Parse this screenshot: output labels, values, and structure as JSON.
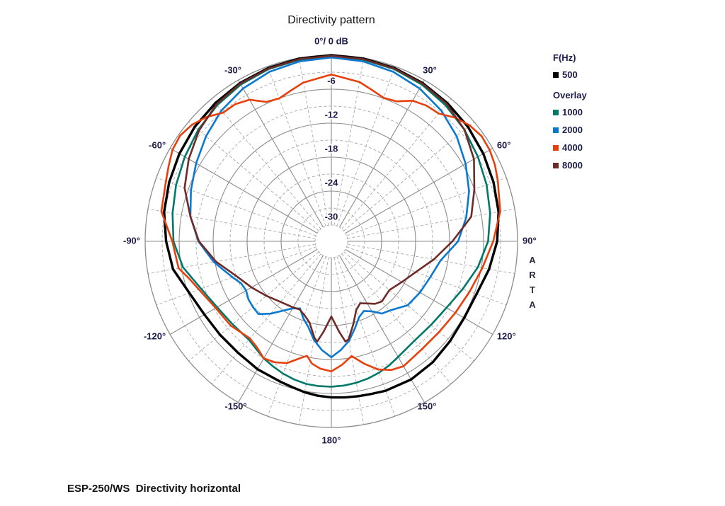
{
  "title": "Directivity pattern",
  "footer": "ESP-250/WS  Directivity horizontal",
  "arta_watermark": "ARTA",
  "legend": {
    "freq_header": "F(Hz)",
    "primary": {
      "label": "500",
      "color": "#000000"
    },
    "overlay_header": "Overlay",
    "overlays": [
      {
        "label": "1000",
        "color": "#00796b"
      },
      {
        "label": "2000",
        "color": "#0b79d0"
      },
      {
        "label": "4000",
        "color": "#e8400d"
      },
      {
        "label": "8000",
        "color": "#6e2b28"
      }
    ]
  },
  "style": {
    "grid_solid_color": "#8c8c8c",
    "grid_dashed_color": "#a8a8a8",
    "tick_label_color": "#1c1c4a",
    "background": "#ffffff"
  },
  "chart_data": {
    "type": "line",
    "subtype": "polar-directivity",
    "title": "Directivity pattern",
    "angle_unit": "deg",
    "radial_unit": "dB",
    "radial_range": [
      0,
      -30
    ],
    "rings_solid_db": [
      0,
      -6,
      -12,
      -18,
      -24
    ],
    "rings_dashed_db": [
      -3,
      -9,
      -15,
      -21,
      -27
    ],
    "inner_hole_db": -30,
    "spoke_step_solid_deg": 30,
    "spoke_step_dashed_deg": 10,
    "db_ticks": [
      {
        "db": -6,
        "label": "-6"
      },
      {
        "db": -12,
        "label": "-12"
      },
      {
        "db": -18,
        "label": "-18"
      },
      {
        "db": -24,
        "label": "-24"
      },
      {
        "db": -30,
        "label": "-30"
      }
    ],
    "angle_ticks": [
      {
        "deg": 0,
        "label": "0°/ 0 dB"
      },
      {
        "deg": 30,
        "label": "30°"
      },
      {
        "deg": 60,
        "label": "60°"
      },
      {
        "deg": 90,
        "label": "90°"
      },
      {
        "deg": 120,
        "label": "120°"
      },
      {
        "deg": 150,
        "label": "150°"
      },
      {
        "deg": 180,
        "label": "180°"
      },
      {
        "deg": -150,
        "label": "-150°"
      },
      {
        "deg": -120,
        "label": "-120°"
      },
      {
        "deg": -90,
        "label": "-90°"
      },
      {
        "deg": -60,
        "label": "-60°"
      },
      {
        "deg": -30,
        "label": "-30°"
      }
    ],
    "series": [
      {
        "name": "500",
        "color": "#000000",
        "width": 3.4,
        "points": [
          [
            -180,
            -5.3
          ],
          [
            -175,
            -5.5
          ],
          [
            -170,
            -5.8
          ],
          [
            -165,
            -6.2
          ],
          [
            -160,
            -6.5
          ],
          [
            -150,
            -6.8
          ],
          [
            -140,
            -7.2
          ],
          [
            -130,
            -7.2
          ],
          [
            -120,
            -7.0
          ],
          [
            -110,
            -6.2
          ],
          [
            -100,
            -4.5
          ],
          [
            -90,
            -3.7
          ],
          [
            -80,
            -2.9
          ],
          [
            -70,
            -2.4
          ],
          [
            -60,
            -1.9
          ],
          [
            -50,
            -1.4
          ],
          [
            -40,
            -1.0
          ],
          [
            -30,
            -0.6
          ],
          [
            -20,
            -0.3
          ],
          [
            -10,
            -0.1
          ],
          [
            0,
            0
          ],
          [
            10,
            -0.1
          ],
          [
            20,
            -0.3
          ],
          [
            30,
            -0.6
          ],
          [
            40,
            -1.0
          ],
          [
            50,
            -1.4
          ],
          [
            60,
            -1.9
          ],
          [
            70,
            -2.4
          ],
          [
            80,
            -2.9
          ],
          [
            90,
            -3.6
          ],
          [
            100,
            -4.6
          ],
          [
            110,
            -5.6
          ],
          [
            120,
            -5.8
          ],
          [
            130,
            -5.5
          ],
          [
            140,
            -5.0
          ],
          [
            150,
            -4.7
          ],
          [
            160,
            -4.8
          ],
          [
            165,
            -5.0
          ],
          [
            170,
            -5.1
          ],
          [
            175,
            -5.2
          ],
          [
            180,
            -5.3
          ]
        ]
      },
      {
        "name": "1000",
        "color": "#00796b",
        "width": 2.6,
        "points": [
          [
            -180,
            -7.2
          ],
          [
            -175,
            -7.2
          ],
          [
            -170,
            -7.3
          ],
          [
            -165,
            -7.6
          ],
          [
            -160,
            -8.0
          ],
          [
            -155,
            -8.5
          ],
          [
            -150,
            -9.0
          ],
          [
            -140,
            -10.2
          ],
          [
            -130,
            -10.1
          ],
          [
            -120,
            -9.6
          ],
          [
            -110,
            -8.4
          ],
          [
            -100,
            -6.3
          ],
          [
            -90,
            -5.0
          ],
          [
            -80,
            -4.4
          ],
          [
            -70,
            -3.7
          ],
          [
            -60,
            -3.0
          ],
          [
            -50,
            -2.2
          ],
          [
            -40,
            -1.5
          ],
          [
            -30,
            -0.9
          ],
          [
            -20,
            -0.5
          ],
          [
            -10,
            -0.3
          ],
          [
            0,
            -0.2
          ],
          [
            10,
            -0.3
          ],
          [
            20,
            -0.5
          ],
          [
            30,
            -0.9
          ],
          [
            40,
            -1.5
          ],
          [
            50,
            -2.2
          ],
          [
            60,
            -3.0
          ],
          [
            70,
            -3.7
          ],
          [
            80,
            -4.4
          ],
          [
            90,
            -5.2
          ],
          [
            100,
            -6.6
          ],
          [
            110,
            -8.2
          ],
          [
            120,
            -9.4
          ],
          [
            130,
            -9.9
          ],
          [
            140,
            -10.0
          ],
          [
            150,
            -9.3
          ],
          [
            155,
            -8.7
          ],
          [
            160,
            -8.2
          ],
          [
            165,
            -7.8
          ],
          [
            170,
            -7.5
          ],
          [
            175,
            -7.3
          ],
          [
            180,
            -7.2
          ]
        ]
      },
      {
        "name": "2000",
        "color": "#0b79d0",
        "width": 2.6,
        "points": [
          [
            -180,
            -12.4
          ],
          [
            -175,
            -13.6
          ],
          [
            -170,
            -15.2
          ],
          [
            -165,
            -17.2
          ],
          [
            -160,
            -18.4
          ],
          [
            -155,
            -19.8
          ],
          [
            -150,
            -19.2
          ],
          [
            -145,
            -17.9
          ],
          [
            -140,
            -16.2
          ],
          [
            -135,
            -14.7
          ],
          [
            -130,
            -14.8
          ],
          [
            -125,
            -15.0
          ],
          [
            -120,
            -15.5
          ],
          [
            -115,
            -15.3
          ],
          [
            -110,
            -14.3
          ],
          [
            -100,
            -11.8
          ],
          [
            -90,
            -9.4
          ],
          [
            -80,
            -7.6
          ],
          [
            -70,
            -6.5
          ],
          [
            -60,
            -5.3
          ],
          [
            -50,
            -4.0
          ],
          [
            -40,
            -2.7
          ],
          [
            -30,
            -1.7
          ],
          [
            -20,
            -1.0
          ],
          [
            -10,
            -0.6
          ],
          [
            0,
            -0.4
          ],
          [
            10,
            -0.6
          ],
          [
            20,
            -1.0
          ],
          [
            30,
            -1.7
          ],
          [
            40,
            -2.7
          ],
          [
            50,
            -4.0
          ],
          [
            60,
            -5.5
          ],
          [
            70,
            -7.0
          ],
          [
            80,
            -8.7
          ],
          [
            90,
            -10.5
          ],
          [
            100,
            -13.3
          ],
          [
            110,
            -14.3
          ],
          [
            120,
            -14.8
          ],
          [
            130,
            -15.3
          ],
          [
            140,
            -16.9
          ],
          [
            145,
            -17.3
          ],
          [
            150,
            -18.6
          ],
          [
            155,
            -19.3
          ],
          [
            160,
            -18.6
          ],
          [
            165,
            -16.9
          ],
          [
            170,
            -15.0
          ],
          [
            175,
            -13.6
          ],
          [
            180,
            -12.4
          ]
        ]
      },
      {
        "name": "4000",
        "color": "#e8400d",
        "width": 2.6,
        "points": [
          [
            -180,
            -9.9
          ],
          [
            -175,
            -10.3
          ],
          [
            -171,
            -11.0
          ],
          [
            -168,
            -12.2
          ],
          [
            -165,
            -11.5
          ],
          [
            -160,
            -10.0
          ],
          [
            -155,
            -9.3
          ],
          [
            -150,
            -9.0
          ],
          [
            -145,
            -10.0
          ],
          [
            -140,
            -10.5
          ],
          [
            -130,
            -9.7
          ],
          [
            -120,
            -9.3
          ],
          [
            -110,
            -8.0
          ],
          [
            -105,
            -7.0
          ],
          [
            -100,
            -5.5
          ],
          [
            -90,
            -4.8
          ],
          [
            -80,
            -2.4
          ],
          [
            -70,
            -1.8
          ],
          [
            -65,
            -1.2
          ],
          [
            -60,
            -0.5
          ],
          [
            -55,
            -0.3
          ],
          [
            -50,
            -0.8
          ],
          [
            -45,
            -1.8
          ],
          [
            -40,
            -3.2
          ],
          [
            -35,
            -3.3
          ],
          [
            -30,
            -4.0
          ],
          [
            -25,
            -5.7
          ],
          [
            -20,
            -6.0
          ],
          [
            -15,
            -5.3
          ],
          [
            -10,
            -4.4
          ],
          [
            0,
            -3.4
          ],
          [
            10,
            -4.3
          ],
          [
            15,
            -5.2
          ],
          [
            20,
            -5.9
          ],
          [
            25,
            -5.6
          ],
          [
            30,
            -4.2
          ],
          [
            35,
            -3.6
          ],
          [
            40,
            -3.4
          ],
          [
            45,
            -2.0
          ],
          [
            50,
            -1.0
          ],
          [
            55,
            -0.5
          ],
          [
            60,
            -0.6
          ],
          [
            65,
            -1.0
          ],
          [
            70,
            -1.6
          ],
          [
            80,
            -2.6
          ],
          [
            90,
            -4.3
          ],
          [
            100,
            -5.8
          ],
          [
            110,
            -6.9
          ],
          [
            120,
            -7.6
          ],
          [
            130,
            -8.0
          ],
          [
            140,
            -8.0
          ],
          [
            150,
            -7.4
          ],
          [
            155,
            -7.8
          ],
          [
            160,
            -8.8
          ],
          [
            165,
            -10.5
          ],
          [
            170,
            -12.3
          ],
          [
            175,
            -11.0
          ],
          [
            180,
            -9.9
          ]
        ]
      },
      {
        "name": "8000",
        "color": "#6e2b28",
        "width": 2.6,
        "points": [
          [
            -180,
            -19.6
          ],
          [
            -175,
            -16.8
          ],
          [
            -172,
            -15.0
          ],
          [
            -170,
            -15.6
          ],
          [
            -165,
            -18.0
          ],
          [
            -160,
            -19.0
          ],
          [
            -155,
            -19.6
          ],
          [
            -150,
            -19.4
          ],
          [
            -140,
            -18.9
          ],
          [
            -130,
            -17.9
          ],
          [
            -120,
            -16.6
          ],
          [
            -110,
            -15.0
          ],
          [
            -100,
            -12.2
          ],
          [
            -90,
            -9.5
          ],
          [
            -80,
            -7.6
          ],
          [
            -70,
            -5.3
          ],
          [
            -60,
            -3.8
          ],
          [
            -50,
            -2.4
          ],
          [
            -40,
            -1.3
          ],
          [
            -30,
            -0.7
          ],
          [
            -20,
            -0.4
          ],
          [
            -10,
            -0.2
          ],
          [
            0,
            -0.1
          ],
          [
            10,
            -0.2
          ],
          [
            20,
            -0.4
          ],
          [
            30,
            -0.7
          ],
          [
            40,
            -1.2
          ],
          [
            50,
            -2.2
          ],
          [
            60,
            -3.8
          ],
          [
            70,
            -6.0
          ],
          [
            80,
            -7.8
          ],
          [
            90,
            -11.5
          ],
          [
            100,
            -14.5
          ],
          [
            110,
            -17.0
          ],
          [
            120,
            -18.5
          ],
          [
            130,
            -19.5
          ],
          [
            140,
            -19.0
          ],
          [
            145,
            -19.4
          ],
          [
            150,
            -20.2
          ],
          [
            155,
            -20.8
          ],
          [
            160,
            -20.0
          ],
          [
            165,
            -17.8
          ],
          [
            170,
            -15.3
          ],
          [
            172,
            -15.0
          ],
          [
            175,
            -16.8
          ],
          [
            180,
            -19.6
          ]
        ]
      }
    ]
  }
}
